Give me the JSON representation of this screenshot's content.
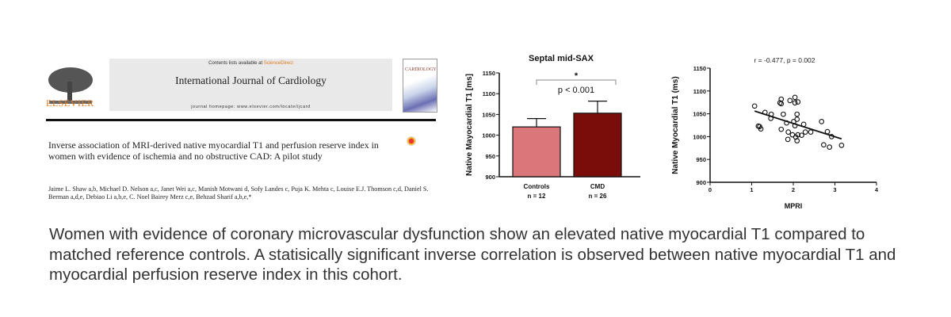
{
  "journal": {
    "contents_prefix": "Contents lists available at ",
    "contents_link": "ScienceDirect",
    "title": "International Journal of Cardiology",
    "homepage": "journal homepage: www.elsevier.com/locate/ijcard",
    "publisher": "ELSEVIER",
    "cover_text": "CARDIOLOGY"
  },
  "article": {
    "title": "Inverse association of MRI-derived native myocardial T1 and perfusion reserve index in women with evidence of ischemia and no obstructive CAD: A pilot study",
    "authors": "Jaime L. Shaw a,b, Michael D. Nelson a,c, Janet Wei a,c, Manish Motwani d, Sofy Landes c, Puja K. Mehta c, Louise E.J. Thomson c,d, Daniel S. Berman a,d,e, Debiao Li a,b,e, C. Noel Bairey Merz c,e, Behzad Sharif a,b,e,*"
  },
  "chart_data": [
    {
      "type": "bar",
      "title": "Septal mid-SAX",
      "ylabel": "Native Mayocardial T1 [ms]",
      "ylim": [
        900,
        1150
      ],
      "yticks": [
        900,
        950,
        1000,
        1050,
        1100,
        1150
      ],
      "categories": [
        "Controls",
        "CMD"
      ],
      "category_sub": [
        "n = 12",
        "n = 26"
      ],
      "values": [
        1020,
        1053
      ],
      "error_upper": [
        1040,
        1082
      ],
      "colors": [
        "#d9777a",
        "#7a0d0a"
      ],
      "annotation": {
        "star": "*",
        "text": "p < 0.001"
      }
    },
    {
      "type": "scatter",
      "title": "r = -0.477, p = 0.002",
      "xlabel": "MPRI",
      "ylabel": "Native Myocardial T1 (ms)",
      "xlim": [
        0,
        4
      ],
      "ylim": [
        900,
        1150
      ],
      "xticks": [
        0,
        1,
        2,
        3,
        4
      ],
      "yticks": [
        900,
        950,
        1000,
        1050,
        1100,
        1150
      ],
      "points": [
        [
          1.07,
          1067
        ],
        [
          1.32,
          1053
        ],
        [
          1.46,
          1040
        ],
        [
          1.47,
          1049
        ],
        [
          1.16,
          1023
        ],
        [
          1.19,
          1022
        ],
        [
          1.22,
          1017
        ],
        [
          1.71,
          1072
        ],
        [
          1.71,
          1082
        ],
        [
          1.68,
          1074
        ],
        [
          1.76,
          1049
        ],
        [
          1.71,
          1016
        ],
        [
          1.84,
          1030
        ],
        [
          1.88,
          1010
        ],
        [
          1.87,
          994
        ],
        [
          1.92,
          1079
        ],
        [
          2.04,
          1086
        ],
        [
          2.04,
          1074
        ],
        [
          2.11,
          1076
        ],
        [
          2.09,
          1049
        ],
        [
          2.01,
          1033
        ],
        [
          2.04,
          1024
        ],
        [
          2.09,
          1038
        ],
        [
          1.98,
          1004
        ],
        [
          2.06,
          999
        ],
        [
          2.09,
          991
        ],
        [
          2.11,
          1004
        ],
        [
          2.2,
          1003
        ],
        [
          2.25,
          1027
        ],
        [
          2.29,
          1010
        ],
        [
          2.42,
          1010
        ],
        [
          2.68,
          1033
        ],
        [
          2.73,
          982
        ],
        [
          2.82,
          1011
        ],
        [
          2.87,
          977
        ],
        [
          2.92,
          1000
        ],
        [
          3.16,
          981
        ]
      ],
      "fit_line": [
        [
          1.07,
          1056
        ],
        [
          3.16,
          995
        ]
      ]
    }
  ],
  "caption": "Women with evidence of coronary microvascular dysfunction show an elevated native myocardial T1 compared to matched reference controls. A statisically significant inverse correlation is observed between native myocardial T1 and myocardial perfusion reserve index in this cohort."
}
